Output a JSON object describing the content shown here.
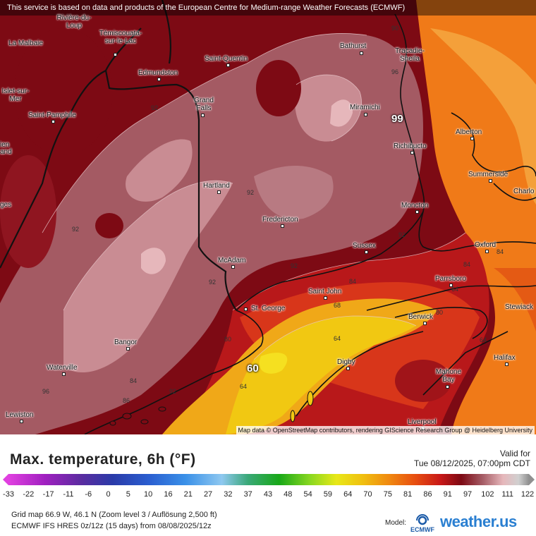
{
  "notice": "This service is based on data and products of the European Centre for Medium-range Weather Forecasts (ECMWF)",
  "attribution": "Map data © OpenStreetMap contributors, rendering GIScience Research Group @ Heidelberg University",
  "colors": {
    "hot_orange": "#f07a18",
    "dark_red": "#7d0a14",
    "mauve": "#a45a63",
    "pink": "#c98c93",
    "cool_yellow": "#f1c812"
  },
  "cities": [
    {
      "name": "La Malbaie"
    },
    {
      "name": "Rivière-du-Loup"
    },
    {
      "name": "Témiscouata-sur-le-Lac"
    },
    {
      "name": "Edmundston"
    },
    {
      "name": "Saint-Quentin"
    },
    {
      "name": "Bathurst"
    },
    {
      "name": "Tracadie-Sheila"
    },
    {
      "name": "Islet-sur-Mer"
    },
    {
      "name": "Saint-Pamphile"
    },
    {
      "name": "Grand Falls"
    },
    {
      "name": "Miramichi"
    },
    {
      "name": "Alberton"
    },
    {
      "name": "Richibucto"
    },
    {
      "name": "Summerside"
    },
    {
      "name": "Charlo"
    },
    {
      "name": "Hartland"
    },
    {
      "name": "Moncton"
    },
    {
      "name": "Fredericton"
    },
    {
      "name": "Oxford"
    },
    {
      "name": "Sussex"
    },
    {
      "name": "McAdam"
    },
    {
      "name": "Parrsboro"
    },
    {
      "name": "Saint John"
    },
    {
      "name": "St. George"
    },
    {
      "name": "Stewiack"
    },
    {
      "name": "Berwick"
    },
    {
      "name": "Bangor"
    },
    {
      "name": "Halifax"
    },
    {
      "name": "Digby"
    },
    {
      "name": "Waterville"
    },
    {
      "name": "Mahone Bay"
    },
    {
      "name": "Lewiston"
    },
    {
      "name": "Liverpool"
    }
  ],
  "edge_labels": [
    "ien",
    "and",
    "ges"
  ],
  "isolines": [
    "90",
    "96",
    "92",
    "92",
    "92",
    "92",
    "92",
    "92",
    "84",
    "84",
    "84",
    "68",
    "64",
    "80",
    "80",
    "64",
    "64",
    "84",
    "86",
    "96",
    "92",
    "64"
  ],
  "extremes": {
    "high": "99",
    "low": "60"
  },
  "legend": {
    "title": "Max. temperature, 6h (°F)",
    "valid_label": "Valid for",
    "valid_time": "Tue 08/12/2025, 07:00pm CDT",
    "ticks": [
      "-33",
      "-22",
      "-17",
      "-11",
      "-6",
      "0",
      "5",
      "10",
      "16",
      "21",
      "27",
      "32",
      "37",
      "43",
      "48",
      "54",
      "59",
      "64",
      "70",
      "75",
      "81",
      "86",
      "91",
      "97",
      "102",
      "111",
      "122"
    ],
    "info_line1": "Grid map 66.9 W, 46.1 N (Zoom level 3 / Auflösung 2,500 ft)",
    "info_line2": "ECMWF IFS HRES 0z/12z (15 days) from  08/08/2025/12z",
    "model_label": "Model:",
    "model_name": "ECMWF",
    "brand": "weather.us"
  }
}
